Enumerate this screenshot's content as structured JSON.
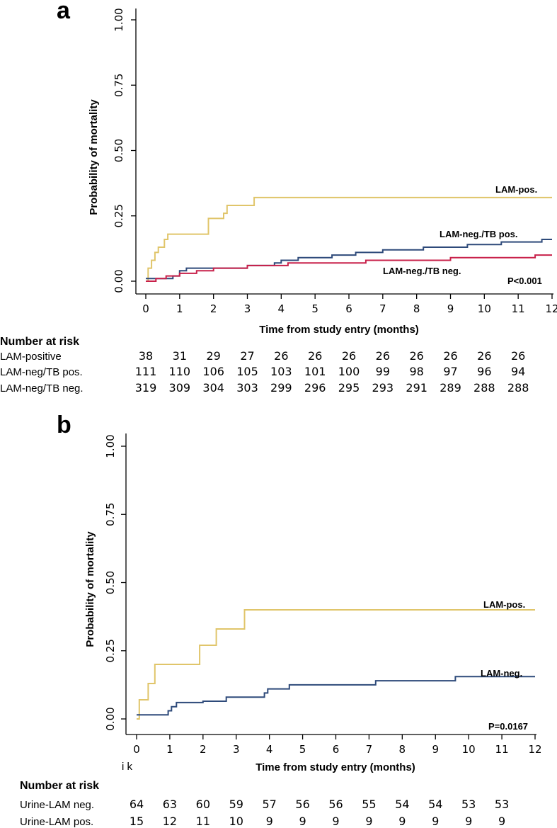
{
  "chart_data": [
    {
      "panel": "a",
      "type": "line",
      "subtype": "kaplan-meier",
      "ylabel": "Probability of mortality",
      "xlabel": "Time from study entry (months)",
      "xlim": [
        0,
        12
      ],
      "ylim": [
        0,
        1
      ],
      "xticks": [
        "0",
        "1",
        "2",
        "3",
        "4",
        "5",
        "6",
        "7",
        "8",
        "9",
        "10",
        "11",
        "12"
      ],
      "yticks": [
        "0.00",
        "0.25",
        "0.50",
        "0.75",
        "1.00"
      ],
      "series": [
        {
          "name": "LAM-pos.",
          "color": "#E0C56A",
          "points": [
            [
              0,
              0
            ],
            [
              0.07,
              0
            ],
            [
              0.07,
              0.05
            ],
            [
              0.17,
              0.05
            ],
            [
              0.17,
              0.08
            ],
            [
              0.27,
              0.08
            ],
            [
              0.27,
              0.11
            ],
            [
              0.37,
              0.11
            ],
            [
              0.37,
              0.13
            ],
            [
              0.55,
              0.13
            ],
            [
              0.55,
              0.16
            ],
            [
              0.65,
              0.16
            ],
            [
              0.65,
              0.18
            ],
            [
              1.85,
              0.18
            ],
            [
              1.85,
              0.24
            ],
            [
              2.3,
              0.24
            ],
            [
              2.3,
              0.26
            ],
            [
              2.4,
              0.26
            ],
            [
              2.4,
              0.29
            ],
            [
              3.2,
              0.29
            ],
            [
              3.2,
              0.32
            ],
            [
              12,
              0.32
            ]
          ]
        },
        {
          "name": "LAM-neg./TB pos.",
          "color": "#2E4A7A",
          "points": [
            [
              0,
              0.01
            ],
            [
              0.8,
              0.01
            ],
            [
              0.8,
              0.02
            ],
            [
              1,
              0.02
            ],
            [
              1,
              0.04
            ],
            [
              1.2,
              0.04
            ],
            [
              1.2,
              0.05
            ],
            [
              2.3,
              0.05
            ],
            [
              2.3,
              0.05
            ],
            [
              3,
              0.05
            ],
            [
              3,
              0.06
            ],
            [
              3.8,
              0.06
            ],
            [
              3.8,
              0.07
            ],
            [
              4,
              0.07
            ],
            [
              4,
              0.08
            ],
            [
              4.5,
              0.08
            ],
            [
              4.5,
              0.09
            ],
            [
              5.5,
              0.09
            ],
            [
              5.5,
              0.1
            ],
            [
              6.2,
              0.1
            ],
            [
              6.2,
              0.11
            ],
            [
              7,
              0.11
            ],
            [
              7,
              0.12
            ],
            [
              8.2,
              0.12
            ],
            [
              8.2,
              0.13
            ],
            [
              9.5,
              0.13
            ],
            [
              9.5,
              0.14
            ],
            [
              10.5,
              0.14
            ],
            [
              10.5,
              0.15
            ],
            [
              11.7,
              0.15
            ],
            [
              11.7,
              0.16
            ],
            [
              12,
              0.16
            ]
          ]
        },
        {
          "name": "LAM-neg./TB neg.",
          "color": "#C8204A",
          "points": [
            [
              0,
              0
            ],
            [
              0.3,
              0
            ],
            [
              0.3,
              0.01
            ],
            [
              0.6,
              0.01
            ],
            [
              0.6,
              0.02
            ],
            [
              1,
              0.02
            ],
            [
              1,
              0.03
            ],
            [
              1.5,
              0.03
            ],
            [
              1.5,
              0.04
            ],
            [
              2,
              0.04
            ],
            [
              2,
              0.05
            ],
            [
              3,
              0.05
            ],
            [
              3,
              0.06
            ],
            [
              4.2,
              0.06
            ],
            [
              4.2,
              0.07
            ],
            [
              6.5,
              0.07
            ],
            [
              6.5,
              0.08
            ],
            [
              9,
              0.08
            ],
            [
              9,
              0.09
            ],
            [
              11.5,
              0.09
            ],
            [
              11.5,
              0.1
            ],
            [
              12,
              0.1
            ]
          ]
        }
      ],
      "annotations": [
        "LAM-pos.",
        "LAM-neg./TB pos.",
        "LAM-neg./TB neg.",
        "P<0.001"
      ],
      "risk_table": {
        "title": "Number at risk",
        "rows": [
          {
            "label": "LAM-positive",
            "values": [
              "38",
              "31",
              "29",
              "27",
              "26",
              "26",
              "26",
              "26",
              "26",
              "26",
              "26",
              "26"
            ]
          },
          {
            "label": "LAM-neg/TB pos.",
            "values": [
              "111",
              "110",
              "106",
              "105",
              "103",
              "101",
              "100",
              "99",
              "98",
              "97",
              "96",
              "94"
            ]
          },
          {
            "label": "LAM-neg/TB neg.",
            "values": [
              "319",
              "309",
              "304",
              "303",
              "299",
              "296",
              "295",
              "293",
              "291",
              "289",
              "288",
              "288"
            ]
          }
        ]
      }
    },
    {
      "panel": "b",
      "type": "line",
      "subtype": "kaplan-meier",
      "ylabel": "Probability of mortality",
      "xlabel": "Time from study entry (months)",
      "xlim": [
        0,
        12
      ],
      "ylim": [
        0,
        1
      ],
      "xticks": [
        "0",
        "1",
        "2",
        "3",
        "4",
        "5",
        "6",
        "7",
        "8",
        "9",
        "10",
        "11",
        "12"
      ],
      "yticks": [
        "0.00",
        "0.25",
        "0.50",
        "0.75",
        "1.00"
      ],
      "series": [
        {
          "name": "LAM-pos.",
          "color": "#E0C56A",
          "points": [
            [
              0,
              0
            ],
            [
              0.08,
              0
            ],
            [
              0.08,
              0.07
            ],
            [
              0.35,
              0.07
            ],
            [
              0.35,
              0.13
            ],
            [
              0.55,
              0.13
            ],
            [
              0.55,
              0.2
            ],
            [
              1.9,
              0.2
            ],
            [
              1.9,
              0.27
            ],
            [
              2.4,
              0.27
            ],
            [
              2.4,
              0.33
            ],
            [
              3.25,
              0.33
            ],
            [
              3.25,
              0.4
            ],
            [
              12,
              0.4
            ]
          ]
        },
        {
          "name": "LAM-neg.",
          "color": "#2E4A7A",
          "points": [
            [
              0,
              0.015
            ],
            [
              0.95,
              0.015
            ],
            [
              0.95,
              0.03
            ],
            [
              1.05,
              0.03
            ],
            [
              1.05,
              0.045
            ],
            [
              1.2,
              0.045
            ],
            [
              1.2,
              0.06
            ],
            [
              2,
              0.06
            ],
            [
              2,
              0.065
            ],
            [
              2.7,
              0.065
            ],
            [
              2.7,
              0.08
            ],
            [
              3.85,
              0.08
            ],
            [
              3.85,
              0.095
            ],
            [
              3.95,
              0.095
            ],
            [
              3.95,
              0.11
            ],
            [
              4.6,
              0.11
            ],
            [
              4.6,
              0.125
            ],
            [
              7.2,
              0.125
            ],
            [
              7.2,
              0.14
            ],
            [
              9.6,
              0.14
            ],
            [
              9.6,
              0.155
            ],
            [
              12,
              0.155
            ]
          ]
        }
      ],
      "annotations": [
        "LAM-pos.",
        "LAM-neg.",
        "P=0.0167"
      ],
      "stray_text": "i  k",
      "risk_table": {
        "title": "Number at risk",
        "rows": [
          {
            "label": "Urine-LAM neg.",
            "values": [
              "64",
              "63",
              "60",
              "59",
              "57",
              "56",
              "56",
              "55",
              "54",
              "54",
              "53",
              "53"
            ]
          },
          {
            "label": "Urine-LAM pos.",
            "values": [
              "15",
              "12",
              "11",
              "10",
              "9",
              "9",
              "9",
              "9",
              "9",
              "9",
              "9",
              "9"
            ]
          }
        ]
      }
    }
  ]
}
